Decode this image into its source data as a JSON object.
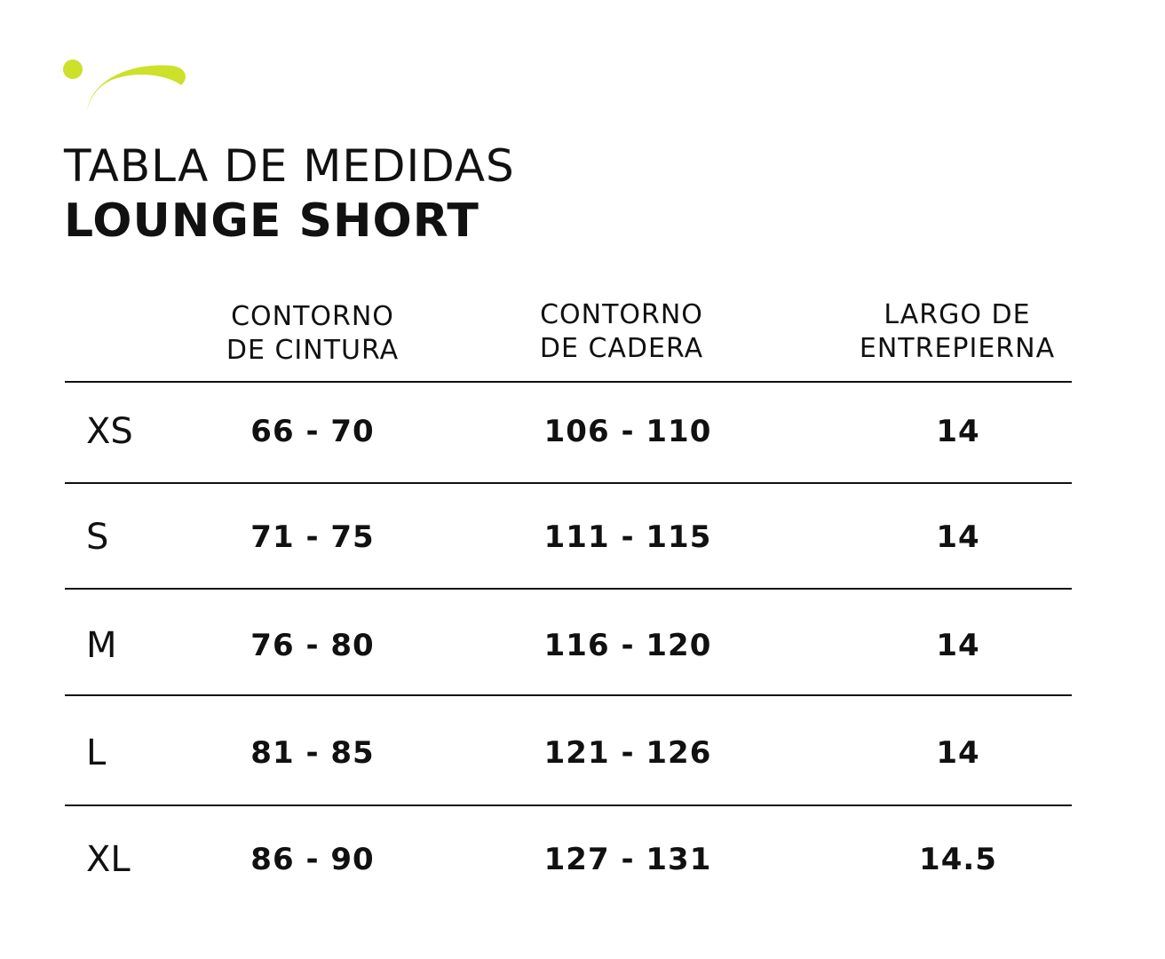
{
  "brand": {
    "accent_color": "#cde02a",
    "logo_icon": "swoosh-dot-logo"
  },
  "title": {
    "line1": "TABLA DE MEDIDAS",
    "line2": "LOUNGE SHORT"
  },
  "table": {
    "headers": [
      {
        "line1": "CONTORNO",
        "line2": "DE CINTURA"
      },
      {
        "line1": "CONTORNO",
        "line2": "DE CADERA"
      },
      {
        "line1": "LARGO DE",
        "line2": "ENTREPIERNA"
      }
    ],
    "rows": [
      {
        "size": "XS",
        "waist": "66 - 70",
        "hip": "106 - 110",
        "inseam": "14"
      },
      {
        "size": "S",
        "waist": "71 - 75",
        "hip": "111 - 115",
        "inseam": "14"
      },
      {
        "size": "M",
        "waist": "76 - 80",
        "hip": "116 - 120",
        "inseam": "14"
      },
      {
        "size": "L",
        "waist": "81 - 85",
        "hip": "121 - 126",
        "inseam": "14"
      },
      {
        "size": "XL",
        "waist": "86 - 90",
        "hip": "127 - 131",
        "inseam": "14.5"
      }
    ]
  }
}
